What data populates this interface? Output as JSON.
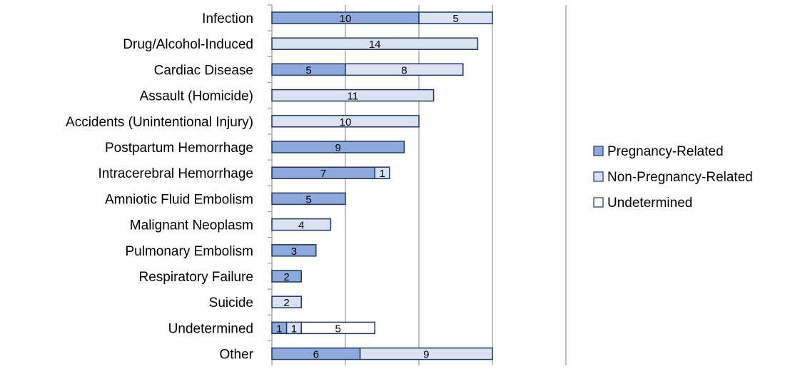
{
  "chart_data": {
    "type": "bar",
    "orientation": "horizontal",
    "stacked": true,
    "categories": [
      "Infection",
      "Drug/Alcohol-Induced",
      "Cardiac Disease",
      "Assault (Homicide)",
      "Accidents (Unintentional Injury)",
      "Postpartum Hemorrhage",
      "Intracerebral Hemorrhage",
      "Amniotic Fluid Embolism",
      "Malignant Neoplasm",
      "Pulmonary Embolism",
      "Respiratory Failure",
      "Suicide",
      "Undetermined",
      "Other"
    ],
    "series": [
      {
        "name": "Pregnancy-Related",
        "color": "#8EA9DB",
        "stroke": "#1F3864",
        "values": [
          10,
          0,
          5,
          0,
          0,
          9,
          7,
          5,
          0,
          3,
          2,
          0,
          1,
          6
        ]
      },
      {
        "name": "Non-Pregnancy-Related",
        "color": "#D9E1F2",
        "stroke": "#1F3864",
        "values": [
          5,
          14,
          8,
          11,
          10,
          0,
          1,
          0,
          4,
          0,
          0,
          2,
          1,
          9
        ]
      },
      {
        "name": "Undetermined",
        "color": "#FFFFFF",
        "stroke": "#1F3864",
        "values": [
          0,
          0,
          0,
          0,
          0,
          0,
          0,
          0,
          0,
          0,
          0,
          0,
          5,
          0
        ]
      }
    ],
    "xlim": [
      0,
      20
    ],
    "x_gridlines": [
      5,
      10,
      15,
      20
    ],
    "grid": true,
    "legend_position": "right",
    "title": "",
    "xlabel": "",
    "ylabel": ""
  }
}
